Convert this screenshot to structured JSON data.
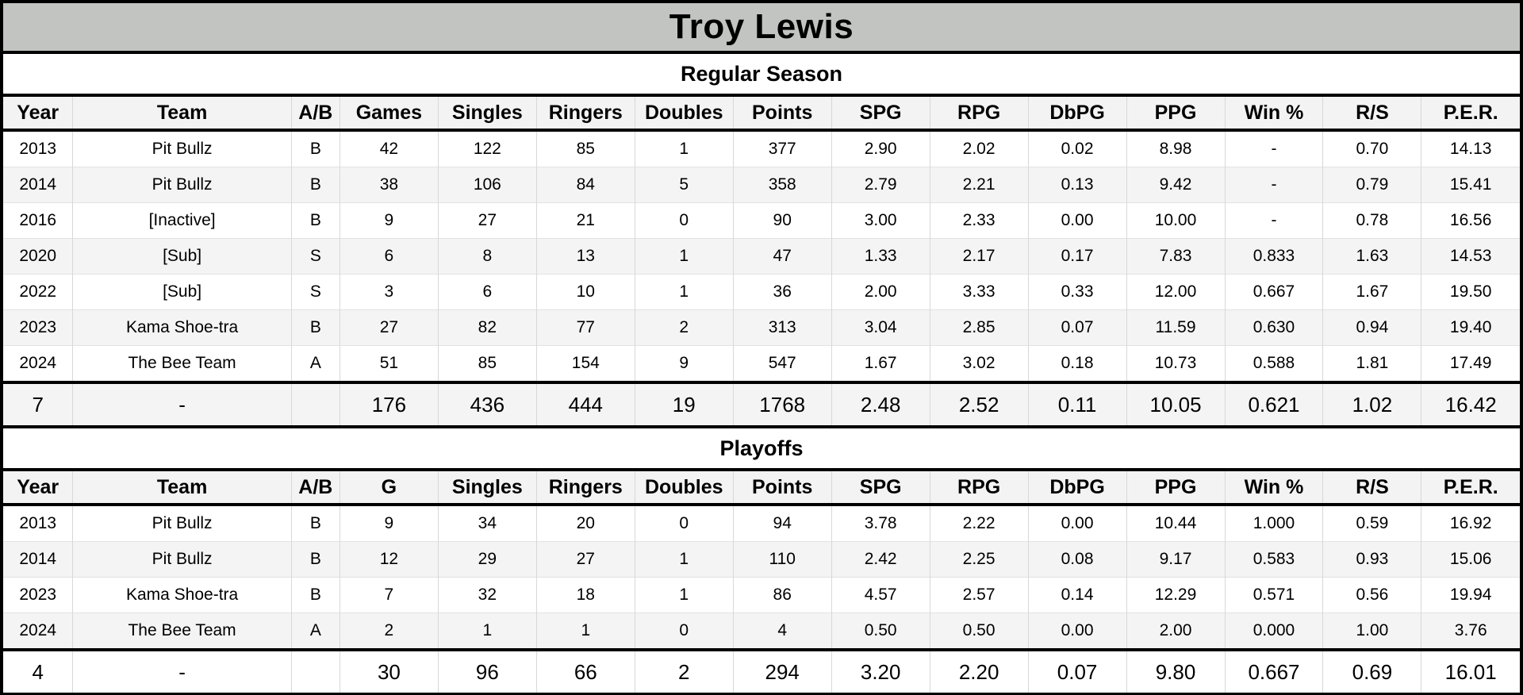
{
  "title": "Troy Lewis",
  "colors": {
    "title_bar_background": "#c1c4c0",
    "header_row_background": "#f3f3f3",
    "stripe_row_background": "#f4f4f4",
    "border_color": "#000000"
  },
  "sections": [
    {
      "label": "Regular Season",
      "headers": [
        "Year",
        "Team",
        "A/B",
        "Games",
        "Singles",
        "Ringers",
        "Doubles",
        "Points",
        "SPG",
        "RPG",
        "DbPG",
        "PPG",
        "Win %",
        "R/S",
        "P.E.R."
      ],
      "rows": [
        [
          "2013",
          "Pit Bullz",
          "B",
          "42",
          "122",
          "85",
          "1",
          "377",
          "2.90",
          "2.02",
          "0.02",
          "8.98",
          "-",
          "0.70",
          "14.13"
        ],
        [
          "2014",
          "Pit Bullz",
          "B",
          "38",
          "106",
          "84",
          "5",
          "358",
          "2.79",
          "2.21",
          "0.13",
          "9.42",
          "-",
          "0.79",
          "15.41"
        ],
        [
          "2016",
          "[Inactive]",
          "B",
          "9",
          "27",
          "21",
          "0",
          "90",
          "3.00",
          "2.33",
          "0.00",
          "10.00",
          "-",
          "0.78",
          "16.56"
        ],
        [
          "2020",
          "[Sub]",
          "S",
          "6",
          "8",
          "13",
          "1",
          "47",
          "1.33",
          "2.17",
          "0.17",
          "7.83",
          "0.833",
          "1.63",
          "14.53"
        ],
        [
          "2022",
          "[Sub]",
          "S",
          "3",
          "6",
          "10",
          "1",
          "36",
          "2.00",
          "3.33",
          "0.33",
          "12.00",
          "0.667",
          "1.67",
          "19.50"
        ],
        [
          "2023",
          "Kama Shoe-tra",
          "B",
          "27",
          "82",
          "77",
          "2",
          "313",
          "3.04",
          "2.85",
          "0.07",
          "11.59",
          "0.630",
          "0.94",
          "19.40"
        ],
        [
          "2024",
          "The Bee Team",
          "A",
          "51",
          "85",
          "154",
          "9",
          "547",
          "1.67",
          "3.02",
          "0.18",
          "10.73",
          "0.588",
          "1.81",
          "17.49"
        ]
      ],
      "totals": [
        "7",
        "-",
        "",
        "176",
        "436",
        "444",
        "19",
        "1768",
        "2.48",
        "2.52",
        "0.11",
        "10.05",
        "0.621",
        "1.02",
        "16.42"
      ]
    },
    {
      "label": "Playoffs",
      "headers": [
        "Year",
        "Team",
        "A/B",
        "G",
        "Singles",
        "Ringers",
        "Doubles",
        "Points",
        "SPG",
        "RPG",
        "DbPG",
        "PPG",
        "Win %",
        "R/S",
        "P.E.R."
      ],
      "rows": [
        [
          "2013",
          "Pit Bullz",
          "B",
          "9",
          "34",
          "20",
          "0",
          "94",
          "3.78",
          "2.22",
          "0.00",
          "10.44",
          "1.000",
          "0.59",
          "16.92"
        ],
        [
          "2014",
          "Pit Bullz",
          "B",
          "12",
          "29",
          "27",
          "1",
          "110",
          "2.42",
          "2.25",
          "0.08",
          "9.17",
          "0.583",
          "0.93",
          "15.06"
        ],
        [
          "2023",
          "Kama Shoe-tra",
          "B",
          "7",
          "32",
          "18",
          "1",
          "86",
          "4.57",
          "2.57",
          "0.14",
          "12.29",
          "0.571",
          "0.56",
          "19.94"
        ],
        [
          "2024",
          "The Bee Team",
          "A",
          "2",
          "1",
          "1",
          "0",
          "4",
          "0.50",
          "0.50",
          "0.00",
          "2.00",
          "0.000",
          "1.00",
          "3.76"
        ]
      ],
      "totals": [
        "4",
        "-",
        "",
        "30",
        "96",
        "66",
        "2",
        "294",
        "3.20",
        "2.20",
        "0.07",
        "9.80",
        "0.667",
        "0.69",
        "16.01"
      ]
    }
  ]
}
